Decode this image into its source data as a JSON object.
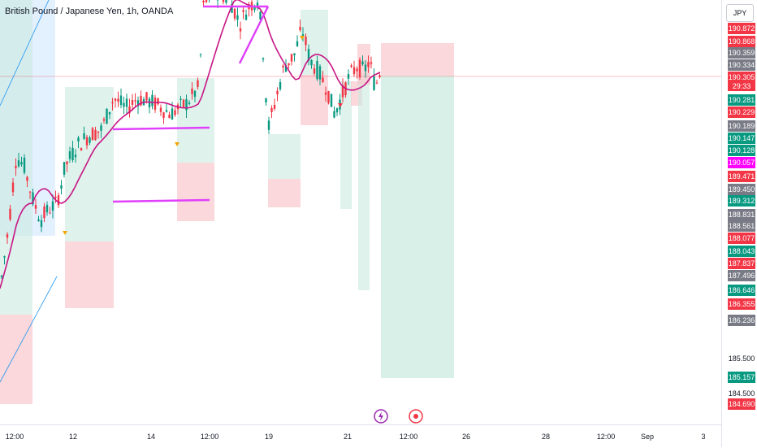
{
  "title": "British Pound / Japanese Yen, 1h, OANDA",
  "currency": "JPY",
  "colors": {
    "up": "#089981",
    "down": "#f23645",
    "ma": "#c71585",
    "trendline": "#e040fb",
    "gray_tag": "#787b86",
    "magenta_tag": "#ff00ff",
    "stop_zone": "#f8c8cc",
    "target_zone": "#c9e9df",
    "blue_zone": "#d7eafd"
  },
  "chart_data": {
    "type": "candlestick",
    "symbol": "GBPJPY",
    "timeframe": "1h",
    "x_ticks": [
      "12:00",
      "12",
      "14",
      "12:00",
      "19",
      "21",
      "12:00",
      "26",
      "28",
      "12:00",
      "Sep",
      "3"
    ],
    "y_ticks": [
      "185.500",
      "184.500"
    ],
    "price_tags": [
      {
        "value": "190.872",
        "color": "down"
      },
      {
        "value": "190.868",
        "color": "down"
      },
      {
        "value": "190.359",
        "color": "gray"
      },
      {
        "value": "190.334",
        "color": "gray"
      },
      {
        "value": "190.305",
        "color": "down",
        "countdown": "29:33"
      },
      {
        "value": "190.281",
        "color": "up"
      },
      {
        "value": "190.229",
        "color": "down"
      },
      {
        "value": "190.189",
        "color": "gray"
      },
      {
        "value": "190.147",
        "color": "up"
      },
      {
        "value": "190.128",
        "color": "up"
      },
      {
        "value": "190.057",
        "color": "magenta"
      },
      {
        "value": "189.471",
        "color": "down"
      },
      {
        "value": "189.450",
        "color": "gray"
      },
      {
        "value": "189.312",
        "color": "up"
      },
      {
        "value": "188.831",
        "color": "gray"
      },
      {
        "value": "188.561",
        "color": "gray"
      },
      {
        "value": "188.077",
        "color": "down"
      },
      {
        "value": "188.043",
        "color": "up"
      },
      {
        "value": "187.837",
        "color": "down"
      },
      {
        "value": "187.496",
        "color": "gray"
      },
      {
        "value": "186.646",
        "color": "up"
      },
      {
        "value": "186.355",
        "color": "down"
      },
      {
        "value": "186.236",
        "color": "gray"
      },
      {
        "value": "185.157",
        "color": "up"
      },
      {
        "value": "184.690",
        "color": "down"
      }
    ],
    "current_price": 190.305
  }
}
